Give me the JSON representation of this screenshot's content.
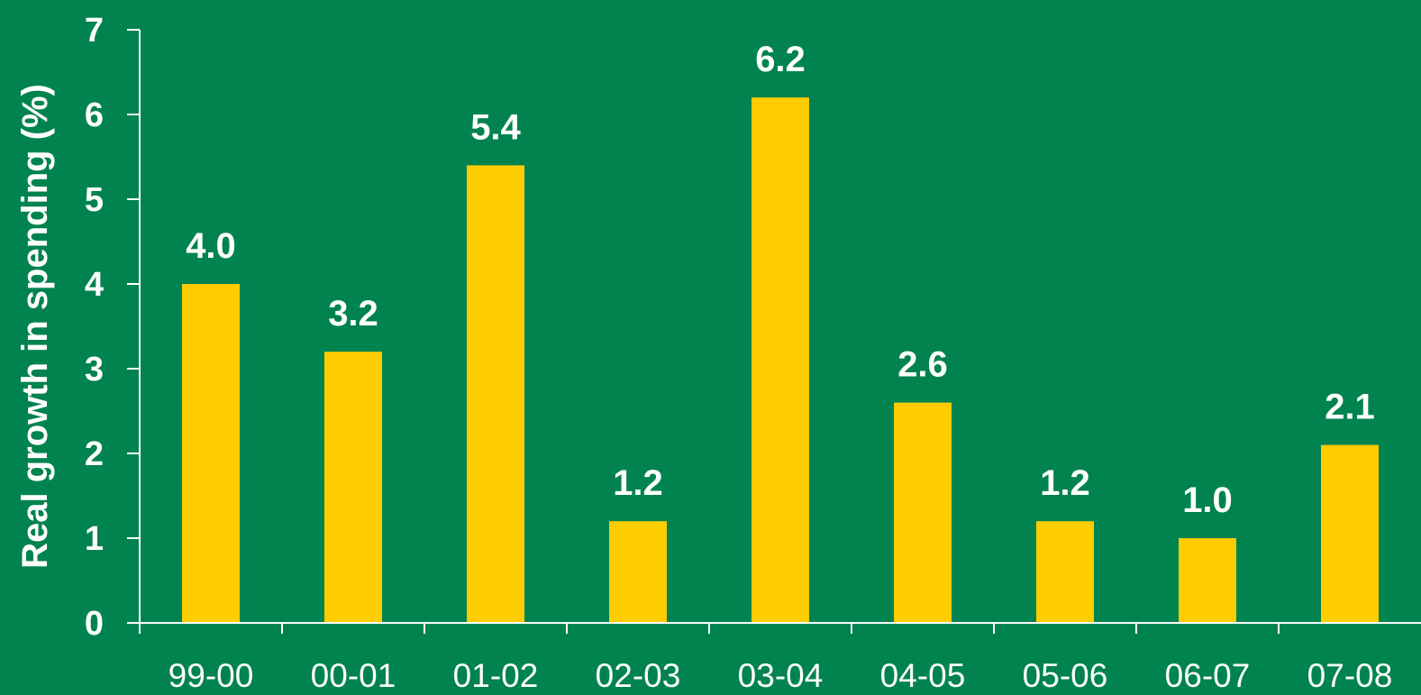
{
  "chart_data": {
    "type": "bar",
    "categories": [
      "99-00",
      "00-01",
      "01-02",
      "02-03",
      "03-04",
      "04-05",
      "05-06",
      "06-07",
      "07-08"
    ],
    "values": [
      4.0,
      3.2,
      5.4,
      1.2,
      6.2,
      2.6,
      1.2,
      1.0,
      2.1
    ],
    "data_labels": [
      "4.0",
      "3.2",
      "5.4",
      "1.2",
      "6.2",
      "2.6",
      "1.2",
      "1.0",
      "2.1"
    ],
    "ylabel": "Real growth in spending (%)",
    "xlabel": "",
    "ylim": [
      0,
      7
    ],
    "yticks": [
      "0",
      "1",
      "2",
      "3",
      "4",
      "5",
      "6",
      "7"
    ],
    "grid": false,
    "legend": "none",
    "colors": {
      "background": "#00834f",
      "bar": "#ffcc00",
      "text": "#ffffff",
      "axis": "#ffffff"
    }
  }
}
